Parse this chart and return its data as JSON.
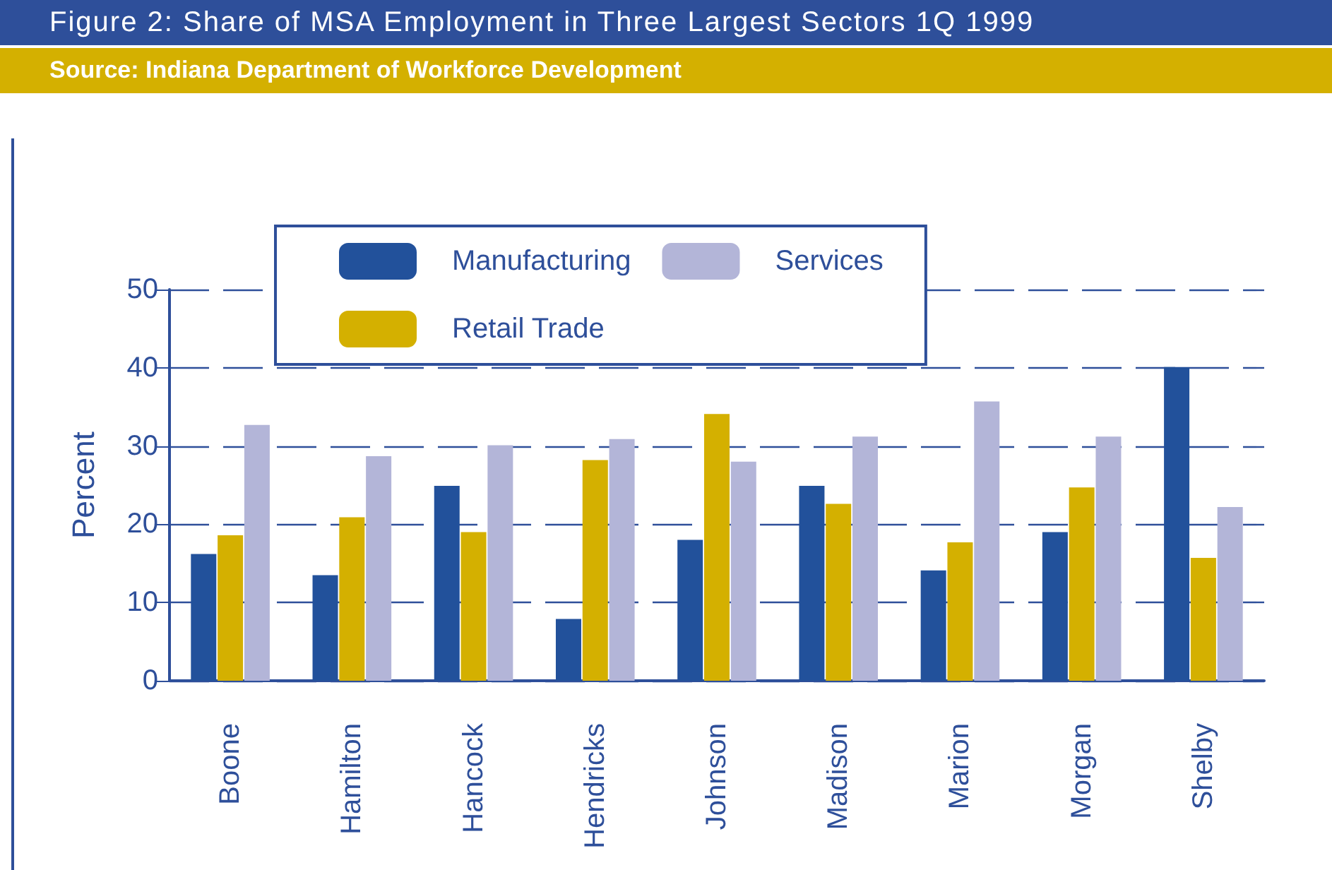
{
  "chart_data": {
    "type": "bar",
    "title": "Figure 2:  Share of MSA Employment in Three Largest Sectors 1Q 1999",
    "annotations": [
      "Source:  Indiana Department of Workforce Development"
    ],
    "ylabel": "Percent",
    "categories": [
      "Boone",
      "Hamilton",
      "Hancock",
      "Hendricks",
      "Johnson",
      "Madison",
      "Marion",
      "Morgan",
      "Shelby"
    ],
    "series": [
      {
        "name": "Manufacturing",
        "color": "#22519b",
        "values": [
          16.2,
          13.5,
          24.9,
          7.9,
          18.0,
          24.9,
          14.1,
          19.0,
          40.1
        ]
      },
      {
        "name": "Retail Trade",
        "color": "#d4b000",
        "values": [
          18.6,
          20.9,
          19.0,
          28.2,
          34.1,
          22.6,
          17.7,
          24.7,
          15.7
        ]
      },
      {
        "name": "Services",
        "color": "#b3b5d8",
        "values": [
          32.7,
          28.7,
          30.1,
          30.9,
          28.0,
          31.2,
          35.7,
          31.2,
          22.2
        ]
      }
    ],
    "ylim": [
      0,
      50
    ],
    "yticks": [
      0,
      10,
      20,
      30,
      40,
      50
    ],
    "grid": "y",
    "legend": "top"
  }
}
